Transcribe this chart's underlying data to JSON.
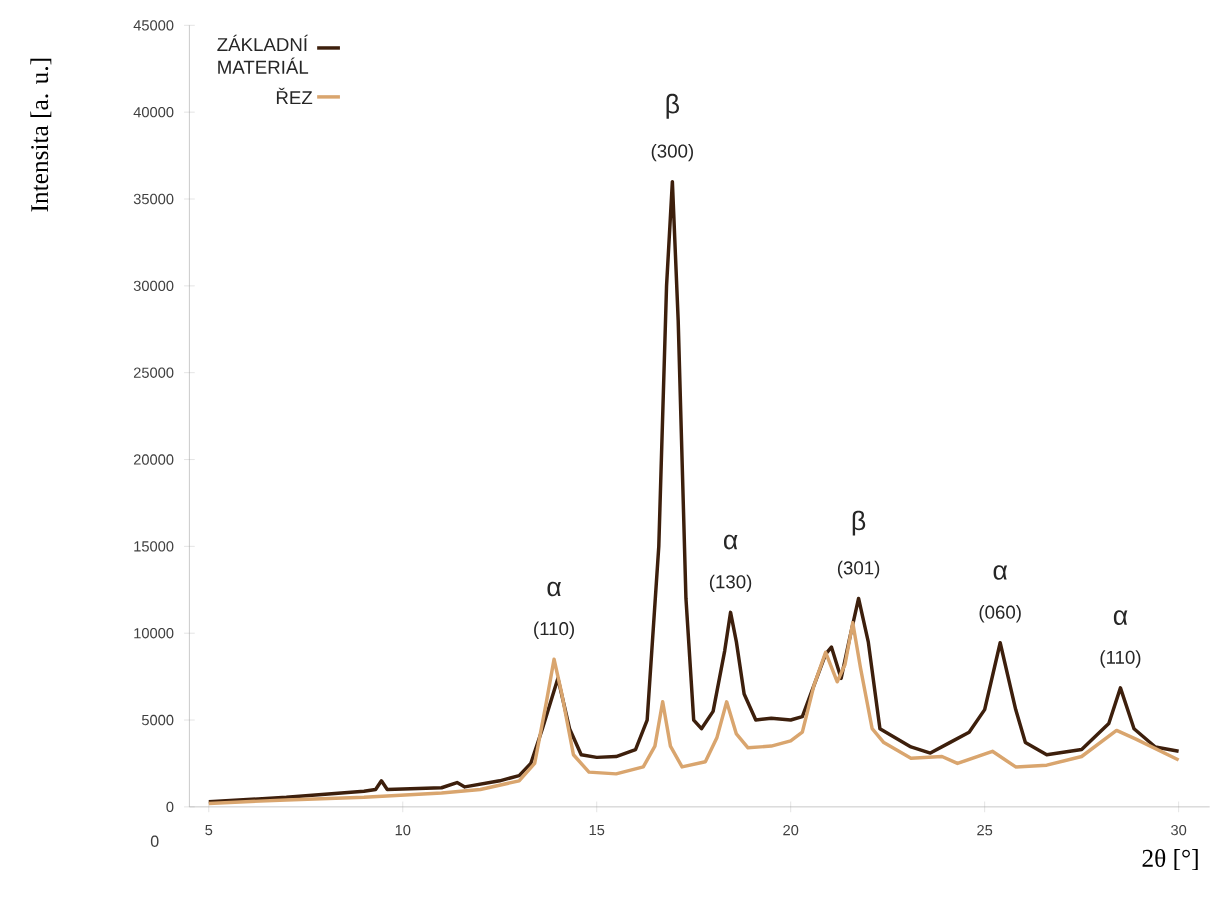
{
  "chart_data": {
    "type": "line",
    "xlabel": "2θ [°]",
    "ylabel": "Intensita [a. u.]",
    "xlim": [
      4.5,
      30.8
    ],
    "xticks": [
      5,
      10,
      15,
      20,
      25,
      30
    ],
    "ylim": [
      0,
      45000
    ],
    "yticks": [
      0,
      5000,
      10000,
      15000,
      20000,
      25000,
      30000,
      35000,
      40000,
      45000
    ],
    "legend": "top left",
    "grid": false,
    "marker": "none",
    "line_style": "solid",
    "series": [
      {
        "name": "ZÁKLADNÍ MATERIÁL",
        "color": "#3d1f0c",
        "x": [
          5,
          7,
          9,
          9.3,
          9.45,
          9.6,
          11,
          11.4,
          11.6,
          12.5,
          13,
          13.3,
          13.6,
          14.0,
          14.3,
          14.6,
          15,
          15.5,
          16,
          16.3,
          16.6,
          16.8,
          16.95,
          17.1,
          17.3,
          17.5,
          17.7,
          18,
          18.3,
          18.45,
          18.6,
          18.8,
          19.1,
          19.5,
          20,
          20.3,
          20.6,
          20.9,
          21.05,
          21.3,
          21.5,
          21.75,
          22,
          22.3,
          23.1,
          23.6,
          24.1,
          24.6,
          25.0,
          25.4,
          25.8,
          26.05,
          26.6,
          27.5,
          28.2,
          28.5,
          28.85,
          29.4,
          30
        ],
        "values": [
          300,
          550,
          900,
          1000,
          1500,
          1000,
          1100,
          1400,
          1150,
          1500,
          1800,
          2500,
          4500,
          7400,
          4500,
          3000,
          2850,
          2900,
          3300,
          5000,
          15000,
          30000,
          36000,
          28000,
          12000,
          5000,
          4500,
          5500,
          9000,
          11200,
          9500,
          6500,
          5000,
          5100,
          5000,
          5200,
          7000,
          8800,
          9200,
          7400,
          9500,
          12000,
          9500,
          4500,
          3450,
          3100,
          3700,
          4300,
          5600,
          9450,
          5600,
          3700,
          3000,
          3300,
          4800,
          6850,
          4500,
          3450,
          3200
        ]
      },
      {
        "name": "ŘEZ",
        "color": "#d9a56e",
        "x": [
          5,
          7,
          9,
          11,
          12,
          13,
          13.4,
          13.7,
          13.9,
          14.1,
          14.4,
          14.8,
          15.5,
          16.2,
          16.5,
          16.7,
          16.9,
          17.2,
          17.8,
          18.1,
          18.35,
          18.6,
          18.9,
          19.5,
          20,
          20.3,
          20.6,
          20.9,
          21.2,
          21.4,
          21.6,
          21.8,
          22.1,
          22.4,
          23.1,
          23.9,
          24.3,
          25.2,
          25.8,
          26.6,
          27.5,
          28.4,
          28.9,
          30
        ],
        "values": [
          200,
          400,
          550,
          800,
          1000,
          1500,
          2500,
          6000,
          8500,
          6500,
          3000,
          2000,
          1900,
          2300,
          3500,
          6050,
          3500,
          2300,
          2600,
          4000,
          6050,
          4200,
          3400,
          3500,
          3800,
          4300,
          7000,
          8900,
          7200,
          8200,
          10600,
          8000,
          4500,
          3700,
          2800,
          2900,
          2500,
          3200,
          2300,
          2400,
          2900,
          4400,
          3900,
          2700
        ]
      }
    ],
    "annotations": [
      {
        "text": "α",
        "x": 13.9,
        "y": 8500
      },
      {
        "text": "(110)",
        "x": 13.9,
        "y": 8500
      },
      {
        "text": "β",
        "x": 16.95,
        "y": 36000
      },
      {
        "text": "(300)",
        "x": 16.95,
        "y": 36000
      },
      {
        "text": "α",
        "x": 18.45,
        "y": 11200
      },
      {
        "text": "(130)",
        "x": 18.45,
        "y": 11200
      },
      {
        "text": "β",
        "x": 21.75,
        "y": 12000
      },
      {
        "text": "(301)",
        "x": 21.75,
        "y": 12000
      },
      {
        "text": "α",
        "x": 25.4,
        "y": 9450
      },
      {
        "text": "(060)",
        "x": 25.4,
        "y": 9450
      },
      {
        "text": "α",
        "x": 28.5,
        "y": 6850
      },
      {
        "text": "(110)",
        "x": 28.5,
        "y": 6850
      },
      "0"
    ]
  }
}
